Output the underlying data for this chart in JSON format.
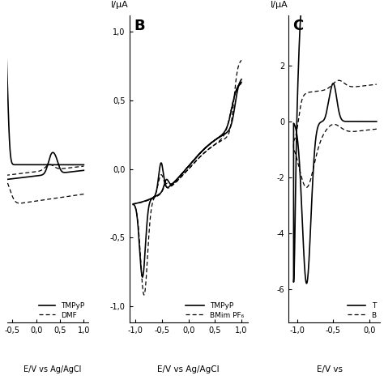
{
  "fig_width": 4.74,
  "fig_height": 4.74,
  "dpi": 100,
  "background": "#ffffff",
  "panel_A": {
    "xlim_data": [
      -1.5,
      1.1
    ],
    "xlim_show": [
      -0.6,
      1.1
    ],
    "ylim": [
      -1.05,
      1.15
    ],
    "xticks": [
      -0.5,
      0.0,
      0.5,
      1.0
    ],
    "xtick_labels": [
      "-0,5",
      "0,0",
      "0,5",
      "1,0"
    ],
    "xlabel": "E/V vs Ag/AgCl",
    "legend": [
      "TMPyP",
      "DMF"
    ]
  },
  "panel_B": {
    "xlim": [
      -1.12,
      1.12
    ],
    "ylim": [
      -1.12,
      1.12
    ],
    "xticks": [
      -1.0,
      -0.5,
      0.0,
      0.5,
      1.0
    ],
    "xtick_labels": [
      "-1,0",
      "-0,5",
      "0,0",
      "0,5",
      "1,0"
    ],
    "yticks": [
      1.0,
      0.5,
      0.0,
      -0.5,
      -1.0
    ],
    "ytick_labels": [
      "1,0",
      "0,5",
      "0,0",
      "-0,5",
      "-1,0"
    ],
    "xlabel": "E/V vs Ag/AgCl",
    "ylabel": "I/μA",
    "label": "B",
    "legend": [
      "TMPyP",
      "BMim PF₆"
    ]
  },
  "panel_C": {
    "xlim": [
      -1.12,
      0.15
    ],
    "ylim": [
      -7.2,
      3.8
    ],
    "xticks": [
      -1.0,
      -0.5,
      0.0
    ],
    "xtick_labels": [
      "-1,0",
      "-0,5",
      "0,0"
    ],
    "yticks": [
      2,
      0,
      -2,
      -4,
      -6
    ],
    "ytick_labels": [
      "2",
      "0",
      "-2",
      "-4",
      "-6"
    ],
    "xlabel": "E/V vs",
    "ylabel": "I/μA",
    "label": "C",
    "legend": [
      "T",
      "B"
    ]
  }
}
